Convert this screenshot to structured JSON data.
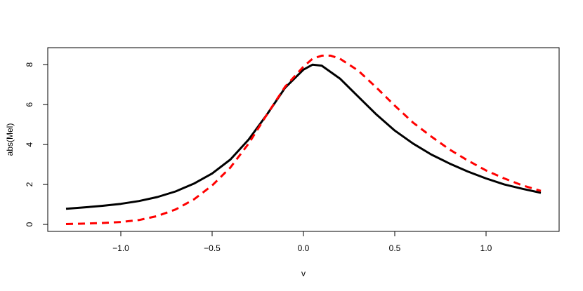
{
  "chart_data": {
    "type": "line",
    "title": "",
    "xlabel": "v",
    "ylabel": "abs(Mel)",
    "xlim": [
      -1.4,
      1.4
    ],
    "ylim": [
      -0.35,
      8.85
    ],
    "grid": false,
    "legend": "none",
    "x_ticks": [
      -1.0,
      -0.5,
      0.0,
      0.5,
      1.0
    ],
    "x_tick_labels": [
      "−1.0",
      "−0.5",
      "0.0",
      "0.5",
      "1.0"
    ],
    "y_ticks": [
      0,
      2,
      4,
      6,
      8
    ],
    "y_tick_labels": [
      "0",
      "2",
      "4",
      "6",
      "8"
    ],
    "series": [
      {
        "color": "#000000",
        "style": "solid",
        "x": [
          -1.3,
          -1.2,
          -1.1,
          -1.0,
          -0.9,
          -0.8,
          -0.7,
          -0.6,
          -0.5,
          -0.4,
          -0.3,
          -0.2,
          -0.1,
          0.0,
          0.05,
          0.1,
          0.2,
          0.3,
          0.4,
          0.5,
          0.6,
          0.7,
          0.8,
          0.9,
          1.0,
          1.1,
          1.2,
          1.3
        ],
        "y": [
          0.78,
          0.85,
          0.93,
          1.03,
          1.17,
          1.37,
          1.65,
          2.04,
          2.55,
          3.25,
          4.25,
          5.5,
          6.85,
          7.75,
          8.0,
          7.95,
          7.3,
          6.4,
          5.5,
          4.7,
          4.05,
          3.5,
          3.05,
          2.65,
          2.3,
          2.0,
          1.78,
          1.58
        ]
      },
      {
        "color": "#ff0000",
        "style": "dashed",
        "x": [
          -1.3,
          -1.2,
          -1.1,
          -1.0,
          -0.9,
          -0.8,
          -0.7,
          -0.6,
          -0.5,
          -0.4,
          -0.3,
          -0.2,
          -0.1,
          0.0,
          0.05,
          0.1,
          0.15,
          0.2,
          0.3,
          0.4,
          0.5,
          0.6,
          0.7,
          0.8,
          0.9,
          1.0,
          1.1,
          1.2,
          1.3
        ],
        "y": [
          0.02,
          0.04,
          0.07,
          0.12,
          0.22,
          0.42,
          0.75,
          1.25,
          1.95,
          2.85,
          4.05,
          5.5,
          6.9,
          7.9,
          8.3,
          8.45,
          8.45,
          8.3,
          7.7,
          6.85,
          5.95,
          5.1,
          4.4,
          3.75,
          3.2,
          2.7,
          2.3,
          1.95,
          1.68
        ]
      }
    ]
  }
}
